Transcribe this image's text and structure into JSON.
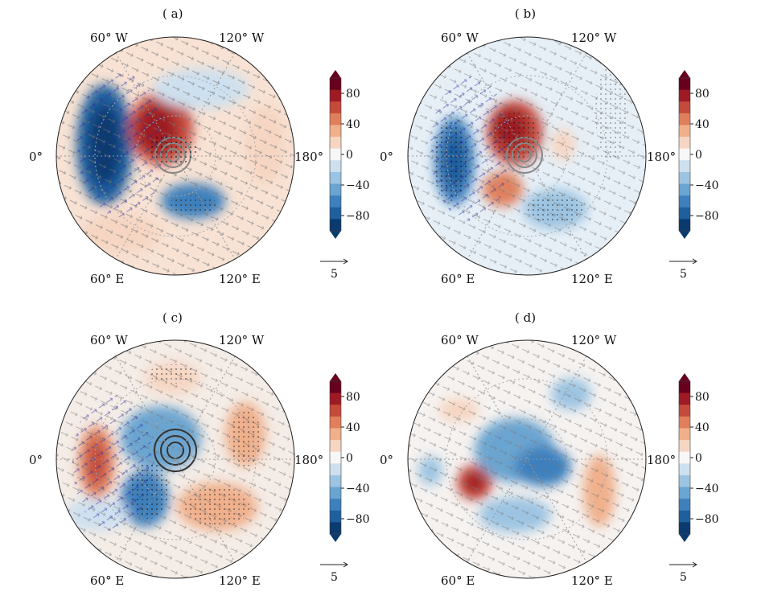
{
  "panels": [
    {
      "id": "a",
      "title": "( a)",
      "lon_labels": {
        "w60": "60° W",
        "w120": "120° W",
        "e60": "60° E",
        "e120": "120° E",
        "zero": "0°",
        "e180": "180°"
      }
    },
    {
      "id": "b",
      "title": "( b)",
      "lon_labels": {
        "w60": "60° W",
        "w120": "120° W",
        "e60": "60° E",
        "e120": "120° E",
        "zero": "0°",
        "e180": "180°"
      }
    },
    {
      "id": "c",
      "title": "( c)",
      "lon_labels": {
        "w60": "60° W",
        "w120": "120° W",
        "e60": "60° E",
        "e120": "120° E",
        "zero": "0°",
        "e180": "180°"
      }
    },
    {
      "id": "d",
      "title": "( d)",
      "lon_labels": {
        "w60": "60° W",
        "w120": "120° W",
        "e60": "60° E",
        "e120": "120° E",
        "zero": "0°",
        "e180": "180°"
      }
    }
  ],
  "colorbar": {
    "ticks": [
      "80",
      "40",
      "0",
      "−40",
      "−80"
    ],
    "vector_scale_label": "5",
    "colors": [
      "#0b3a6e",
      "#1f5f9e",
      "#3d80bd",
      "#6aa4d0",
      "#9cc4e2",
      "#cde0ef",
      "#f7f7f7",
      "#f6d6c2",
      "#f0b08c",
      "#e07f5c",
      "#c44a3c",
      "#9e1a24",
      "#67001f"
    ]
  }
}
